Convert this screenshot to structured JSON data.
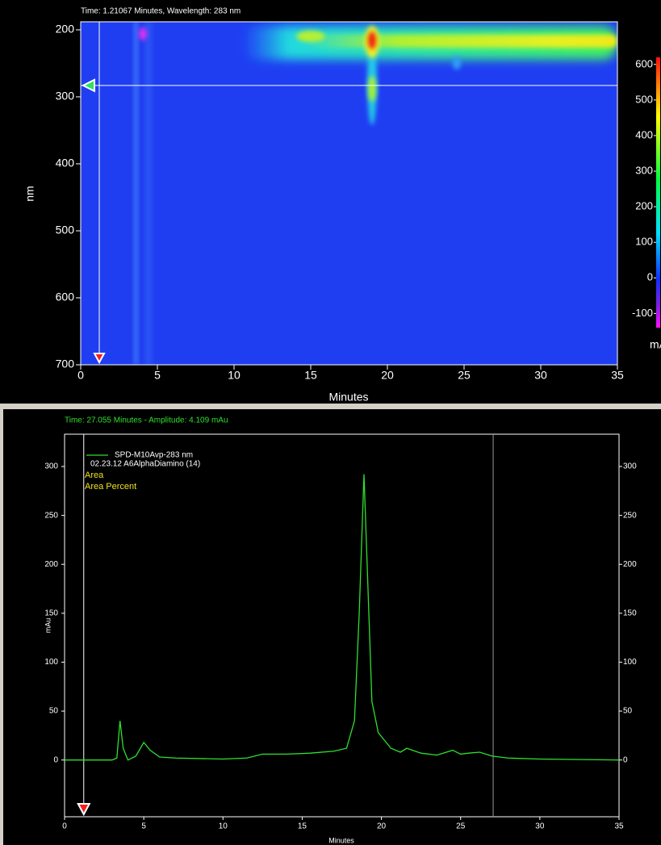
{
  "chart_data": [
    {
      "type": "heatmap",
      "title": "Time: 1.21067 Minutes, Wavelength: 283 nm",
      "xlabel": "Minutes",
      "ylabel": "nm",
      "xlim": [
        0,
        35
      ],
      "xticks": [
        0,
        5,
        10,
        15,
        20,
        25,
        30,
        35
      ],
      "ylim": [
        700,
        188
      ],
      "yticks": [
        200,
        300,
        400,
        500,
        600,
        700
      ],
      "cursor_x": 1.21067,
      "cursor_y": 283,
      "colorbar": {
        "label": "mA",
        "lim": [
          -140,
          620
        ],
        "ticks": [
          -100,
          0,
          100,
          200,
          300,
          400,
          500,
          600
        ]
      }
    },
    {
      "type": "line",
      "title": "Time: 27.055 Minutes - Amplitude: 4.109 mAu",
      "xlabel": "Minutes",
      "ylabel": "mAu",
      "xlim": [
        0,
        35
      ],
      "xticks": [
        0,
        5,
        10,
        15,
        20,
        25,
        30,
        35
      ],
      "ylim": [
        -58,
        333
      ],
      "yticks": [
        0,
        50,
        100,
        150,
        200,
        250,
        300
      ],
      "cursor_x": [
        1.21067,
        27.055
      ],
      "sample": "02.23.12 A6AlphaDiamino (14)",
      "annotations": [
        "Area",
        "Area Percent"
      ],
      "x": [
        0,
        3.0,
        3.3,
        3.5,
        3.7,
        4.0,
        4.5,
        5.0,
        5.4,
        6.0,
        7.0,
        10.0,
        11.5,
        12.5,
        14.0,
        15.5,
        17.0,
        17.8,
        18.3,
        18.6,
        18.9,
        19.1,
        19.4,
        19.8,
        20.1,
        20.6,
        21.2,
        21.6,
        22.5,
        23.5,
        24.5,
        25.0,
        25.5,
        26.2,
        27.0,
        28.0,
        30.0,
        35.0
      ],
      "series": [
        {
          "name": "SPD-M10Avp-283 nm",
          "color": "#2ee02e",
          "values": [
            0,
            0,
            2,
            40,
            12,
            0,
            4,
            18,
            10,
            3,
            2,
            1,
            2,
            6,
            6,
            7,
            9,
            12,
            40,
            150,
            292,
            200,
            60,
            28,
            22,
            12,
            8,
            12,
            7,
            5,
            10,
            6,
            7,
            8,
            4,
            2,
            1,
            0
          ]
        }
      ]
    }
  ]
}
